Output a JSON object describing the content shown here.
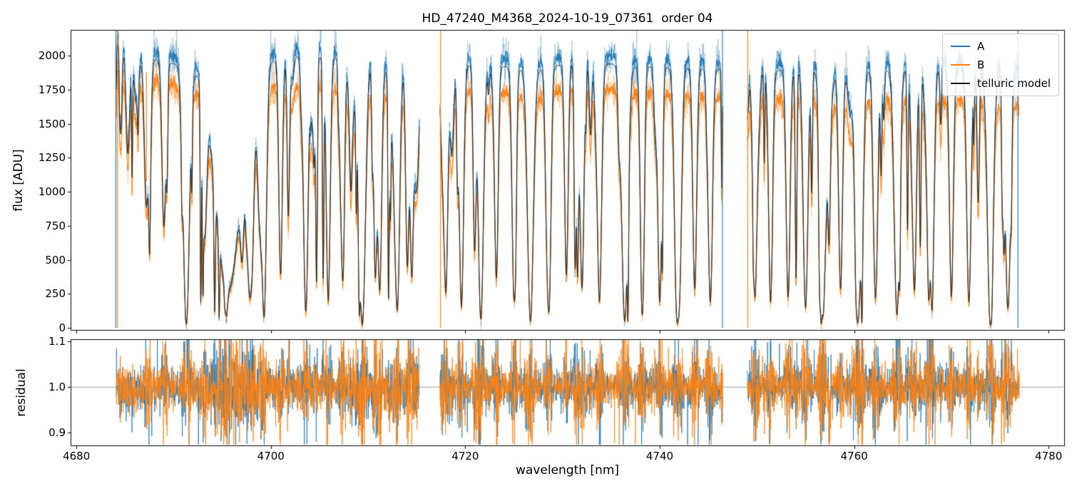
{
  "chart_data": {
    "type": "line",
    "title": "HD_47240_M4368_2024-10-19_07361  order 04",
    "xlabel": "wavelength [nm]",
    "xlim": [
      4679.4,
      4781.6
    ],
    "xticks": [
      4680,
      4700,
      4720,
      4740,
      4760,
      4780
    ],
    "top_panel": {
      "ylabel": "flux [ADU]",
      "ylim": [
        -15,
        2190
      ],
      "yticks": [
        0,
        250,
        500,
        750,
        1000,
        1250,
        1500,
        1750,
        2000
      ]
    },
    "bottom_panel": {
      "ylabel": "residual",
      "ylim": [
        0.872,
        1.105
      ],
      "yticks": [
        0.9,
        1.0,
        1.1
      ],
      "baseline": 1.0,
      "baseline_color": "#999999"
    },
    "legend": [
      {
        "label": "A",
        "color": "#1f77b4"
      },
      {
        "label": "B",
        "color": "#ff7f0e"
      },
      {
        "label": "telluric model",
        "color": "#1a1a1a"
      }
    ],
    "segments": [
      [
        4684.1,
        4715.3
      ],
      [
        4717.4,
        4746.5
      ],
      [
        4749.0,
        4777.0
      ]
    ],
    "series": [
      {
        "name": "A",
        "color": "#1f77b4",
        "continuum_x": [
          4684,
          4686,
          4689,
          4692,
          4695,
          4699,
          4703,
          4707,
          4711,
          4715,
          4719,
          4723,
          4727,
          4731,
          4735,
          4739,
          4743,
          4747,
          4751,
          4755,
          4759,
          4763,
          4767,
          4771,
          4774,
          4777
        ],
        "continuum_y": [
          2170,
          2090,
          2010,
          1990,
          2030,
          2010,
          2060,
          2040,
          1990,
          1970,
          1990,
          1990,
          1950,
          2010,
          2000,
          1980,
          1970,
          1960,
          1950,
          1950,
          1960,
          1950,
          1980,
          1960,
          1950,
          1900
        ]
      },
      {
        "name": "B",
        "color": "#ff7f0e",
        "continuum_x": [
          4684,
          4686,
          4689,
          4692,
          4695,
          4699,
          4703,
          4707,
          4711,
          4715,
          4719,
          4723,
          4727,
          4731,
          4735,
          4739,
          4743,
          4747,
          4751,
          4755,
          4759,
          4763,
          4767,
          4771,
          4774,
          4777
        ],
        "continuum_y": [
          1900,
          1840,
          1800,
          1790,
          1780,
          1770,
          1780,
          1760,
          1740,
          1730,
          1750,
          1740,
          1700,
          1760,
          1750,
          1730,
          1710,
          1700,
          1690,
          1680,
          1680,
          1670,
          1700,
          1680,
          1660,
          1620
        ]
      },
      {
        "name": "telluric model",
        "color": "#1a1a1a",
        "scale_of_A": 0.97
      }
    ],
    "telluric_strong_lines": [
      [
        4687.2,
        0.55,
        0.22
      ],
      [
        4689.0,
        0.62,
        0.2
      ],
      [
        4691.3,
        0.985,
        0.32
      ],
      [
        4693.2,
        0.6,
        0.2
      ],
      [
        4695.6,
        0.86,
        1.3
      ],
      [
        4697.8,
        0.7,
        0.2
      ],
      [
        4699.3,
        0.95,
        0.24
      ],
      [
        4701.0,
        0.8,
        0.18
      ],
      [
        4703.6,
        0.92,
        0.22
      ],
      [
        4705.9,
        0.9,
        0.2
      ],
      [
        4707.4,
        0.75,
        0.18
      ],
      [
        4709.4,
        0.985,
        0.3
      ],
      [
        4711.2,
        0.85,
        0.2
      ],
      [
        4713.0,
        0.9,
        0.22
      ],
      [
        4714.5,
        0.8,
        0.18
      ],
      [
        4718.0,
        0.85,
        0.2
      ],
      [
        4719.6,
        0.92,
        0.22
      ],
      [
        4721.6,
        0.96,
        0.26
      ],
      [
        4723.2,
        0.8,
        0.18
      ],
      [
        4725.0,
        0.85,
        0.2
      ],
      [
        4726.7,
        0.975,
        0.3
      ],
      [
        4728.6,
        0.9,
        0.2
      ],
      [
        4730.4,
        0.8,
        0.18
      ],
      [
        4732.0,
        0.85,
        0.2
      ],
      [
        4733.8,
        0.9,
        0.22
      ],
      [
        4736.4,
        0.975,
        0.32
      ],
      [
        4738.2,
        0.85,
        0.2
      ],
      [
        4740.0,
        0.9,
        0.2
      ],
      [
        4741.8,
        0.95,
        0.26
      ],
      [
        4743.6,
        0.85,
        0.2
      ],
      [
        4745.2,
        0.9,
        0.22
      ],
      [
        4749.8,
        0.88,
        0.22
      ],
      [
        4751.4,
        0.9,
        0.2
      ],
      [
        4753.2,
        0.85,
        0.2
      ],
      [
        4755.0,
        0.9,
        0.22
      ],
      [
        4756.8,
        0.95,
        0.28
      ],
      [
        4758.6,
        0.85,
        0.2
      ],
      [
        4760.4,
        0.9,
        0.2
      ],
      [
        4762.2,
        0.88,
        0.22
      ],
      [
        4764.4,
        0.95,
        0.28
      ],
      [
        4766.2,
        0.85,
        0.2
      ],
      [
        4768.0,
        0.9,
        0.22
      ],
      [
        4770.0,
        0.88,
        0.2
      ],
      [
        4771.8,
        0.9,
        0.22
      ],
      [
        4774.0,
        0.95,
        0.3
      ],
      [
        4775.8,
        0.9,
        0.25
      ]
    ],
    "telluric_random_lines": {
      "seed": 20241019,
      "count": 150,
      "span": [
        4683,
        4779
      ]
    },
    "edge_artifacts": [
      [
        4684.05,
        "#1f77b4",
        0,
        2190
      ],
      [
        4684.22,
        "#ff7f0e",
        0,
        2190
      ],
      [
        4687.2,
        "#ff7f0e",
        1080,
        1880
      ],
      [
        4717.45,
        "#ff7f0e",
        0,
        2190
      ],
      [
        4746.45,
        "#1f77b4",
        0,
        2190
      ],
      [
        4749.05,
        "#ff7f0e",
        0,
        2190
      ],
      [
        4776.85,
        "#1f77b4",
        0,
        2190
      ]
    ],
    "noise": {
      "A_rel": 0.012,
      "B_rel": 0.014,
      "raw_rel": 0.035,
      "raw_add": 30,
      "main_add": 8,
      "residual_base": 0.016,
      "residual_line_boost": 0.055
    }
  }
}
